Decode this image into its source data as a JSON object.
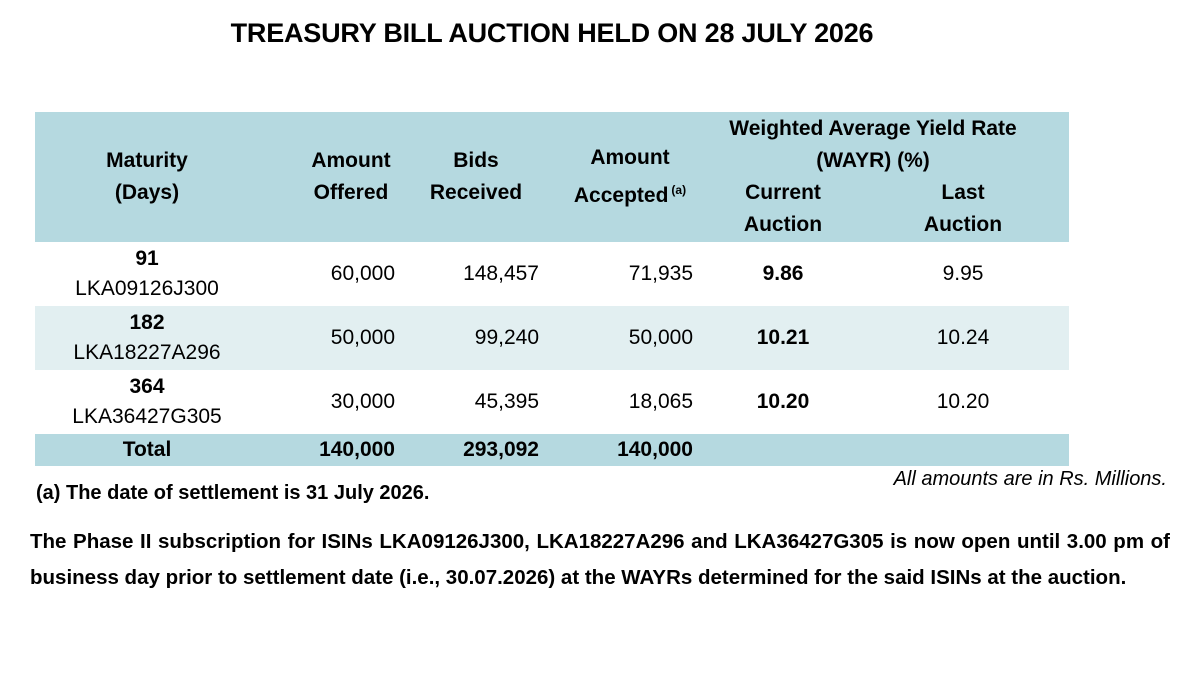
{
  "title": "TREASURY BILL AUCTION HELD ON 28 JULY 2026",
  "table": {
    "headers": {
      "maturity": [
        "Maturity",
        "(Days)"
      ],
      "amount_offered": [
        "Amount",
        "Offered"
      ],
      "bids_received": [
        "Bids",
        "Received"
      ],
      "amount_accepted": [
        "Amount",
        "Accepted"
      ],
      "amount_accepted_sup": "(a)",
      "wayr": [
        "Weighted Average Yield Rate",
        "(WAYR) (%)"
      ],
      "current_auction": [
        "Current",
        "Auction"
      ],
      "last_auction": [
        "Last",
        "Auction"
      ]
    },
    "rows": [
      {
        "days": "91",
        "isin": "LKA09126J300",
        "offered": "60,000",
        "bids": "148,457",
        "accepted": "71,935",
        "current": "9.86",
        "last": "9.95"
      },
      {
        "days": "182",
        "isin": "LKA18227A296",
        "offered": "50,000",
        "bids": "99,240",
        "accepted": "50,000",
        "current": "10.21",
        "last": "10.24"
      },
      {
        "days": "364",
        "isin": "LKA36427G305",
        "offered": "30,000",
        "bids": "45,395",
        "accepted": "18,065",
        "current": "10.20",
        "last": "10.20"
      }
    ],
    "total": {
      "label": "Total",
      "offered": "140,000",
      "bids": "293,092",
      "accepted": "140,000"
    }
  },
  "units_note": "All amounts are in Rs. Millions.",
  "settlement_note": "(a) The date of settlement is 31 July 2026.",
  "phase_two_text": "The Phase II subscription for ISINs LKA09126J300, LKA18227A296 and LKA36427G305 is now open until 3.00 pm of business day prior to settlement date (i.e., 30.07.2026) at the WAYRs determined for the said ISINs at the auction."
}
